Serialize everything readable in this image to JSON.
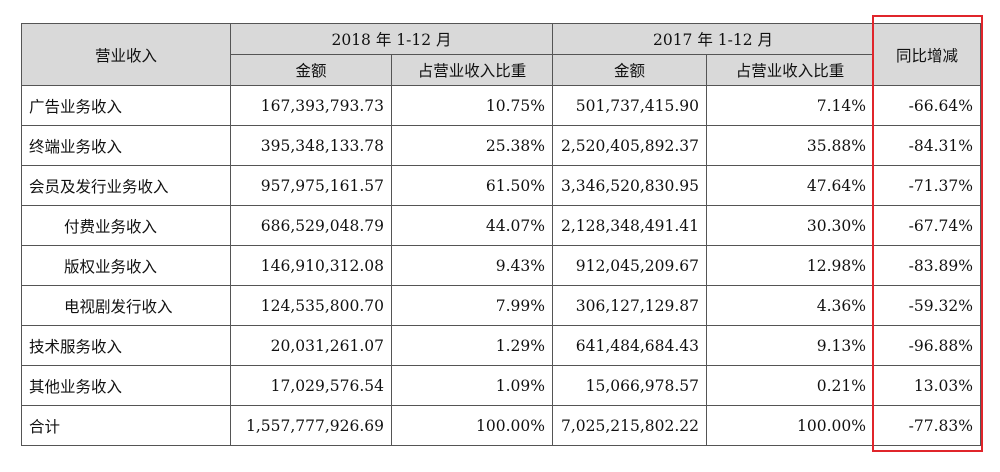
{
  "header": {
    "category": "营业收入",
    "period_2018": "2018 年 1-12 月",
    "period_2017": "2017 年 1-12 月",
    "yoy": "同比增减",
    "amount": "金额",
    "share": "占营业收入比重"
  },
  "rows": [
    {
      "name": "广告业务收入",
      "indent": false,
      "amt_2018": "167,393,793.73",
      "pct_2018": "10.75%",
      "amt_2017": "501,737,415.90",
      "pct_2017": "7.14%",
      "yoy": "-66.64%"
    },
    {
      "name": "终端业务收入",
      "indent": false,
      "amt_2018": "395,348,133.78",
      "pct_2018": "25.38%",
      "amt_2017": "2,520,405,892.37",
      "pct_2017": "35.88%",
      "yoy": "-84.31%"
    },
    {
      "name": "会员及发行业务收入",
      "indent": false,
      "amt_2018": "957,975,161.57",
      "pct_2018": "61.50%",
      "amt_2017": "3,346,520,830.95",
      "pct_2017": "47.64%",
      "yoy": "-71.37%"
    },
    {
      "name": "付费业务收入",
      "indent": true,
      "amt_2018": "686,529,048.79",
      "pct_2018": "44.07%",
      "amt_2017": "2,128,348,491.41",
      "pct_2017": "30.30%",
      "yoy": "-67.74%"
    },
    {
      "name": "版权业务收入",
      "indent": true,
      "amt_2018": "146,910,312.08",
      "pct_2018": "9.43%",
      "amt_2017": "912,045,209.67",
      "pct_2017": "12.98%",
      "yoy": "-83.89%"
    },
    {
      "name": "电视剧发行收入",
      "indent": true,
      "amt_2018": "124,535,800.70",
      "pct_2018": "7.99%",
      "amt_2017": "306,127,129.87",
      "pct_2017": "4.36%",
      "yoy": "-59.32%"
    },
    {
      "name": "技术服务收入",
      "indent": false,
      "amt_2018": "20,031,261.07",
      "pct_2018": "1.29%",
      "amt_2017": "641,484,684.43",
      "pct_2017": "9.13%",
      "yoy": "-96.88%"
    },
    {
      "name": "其他业务收入",
      "indent": false,
      "amt_2018": "17,029,576.54",
      "pct_2018": "1.09%",
      "amt_2017": "15,066,978.57",
      "pct_2017": "0.21%",
      "yoy": "13.03%"
    },
    {
      "name": "合计",
      "indent": false,
      "amt_2018": "1,557,777,926.69",
      "pct_2018": "100.00%",
      "amt_2017": "7,025,215,802.22",
      "pct_2017": "100.00%",
      "yoy": "-77.83%"
    }
  ],
  "colors": {
    "header_bg": "#d9d9d9",
    "highlight": "#e0252b",
    "border": "#555555"
  }
}
